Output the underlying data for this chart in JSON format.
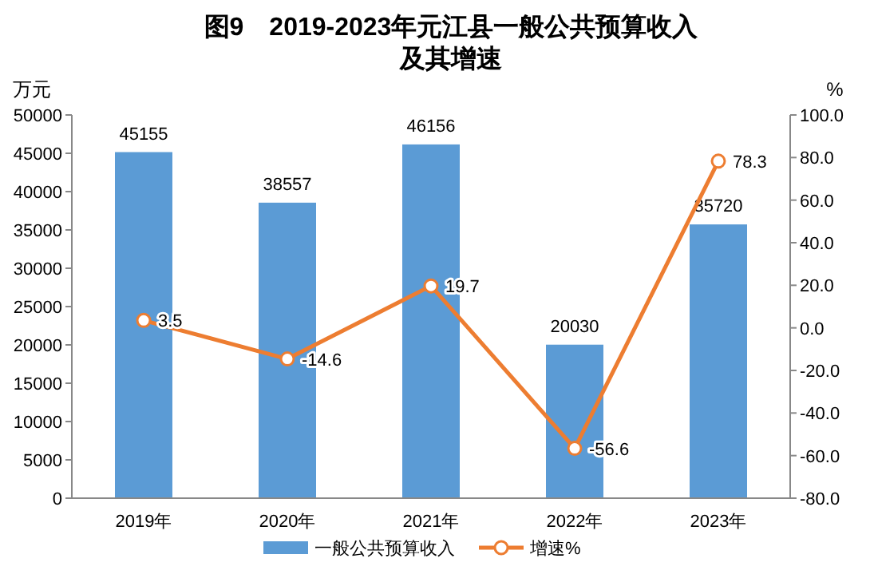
{
  "chart_data": {
    "type": "bar",
    "title": "图9　2019-2023年元江县一般公共预算收入及其增速",
    "categories": [
      "2019年",
      "2020年",
      "2021年",
      "2022年",
      "2023年"
    ],
    "series": [
      {
        "name": "一般公共预算收入",
        "color": "#5b9bd5",
        "values": [
          45155,
          38557,
          46156,
          20030,
          35720
        ]
      },
      {
        "name": "增速%",
        "type": "line",
        "axis": "y2",
        "color": "#ed7d31",
        "values": [
          3.5,
          -14.6,
          19.7,
          -56.6,
          78.3
        ]
      }
    ],
    "ylabel": "万元",
    "y2label": "%",
    "ylim": [
      0,
      50000
    ],
    "yticks": [
      0,
      5000,
      10000,
      15000,
      20000,
      25000,
      30000,
      35000,
      40000,
      45000,
      50000
    ],
    "y2lim": [
      -80,
      100
    ],
    "y2ticks": [
      {
        "value": -80,
        "label": "-80.0"
      },
      {
        "value": -60,
        "label": "-60.0"
      },
      {
        "value": -40,
        "label": "-40.0"
      },
      {
        "value": -20,
        "label": "-20.0"
      },
      {
        "value": 0,
        "label": "0.0"
      },
      {
        "value": 20,
        "label": "20.0"
      },
      {
        "value": 40,
        "label": "40.0"
      },
      {
        "value": 60,
        "label": "60.0"
      },
      {
        "value": 80,
        "label": "80.0"
      },
      {
        "value": 100,
        "label": "100.0"
      }
    ],
    "data_labels": true,
    "marker": "circle",
    "legend": "bottom",
    "grid": false
  }
}
